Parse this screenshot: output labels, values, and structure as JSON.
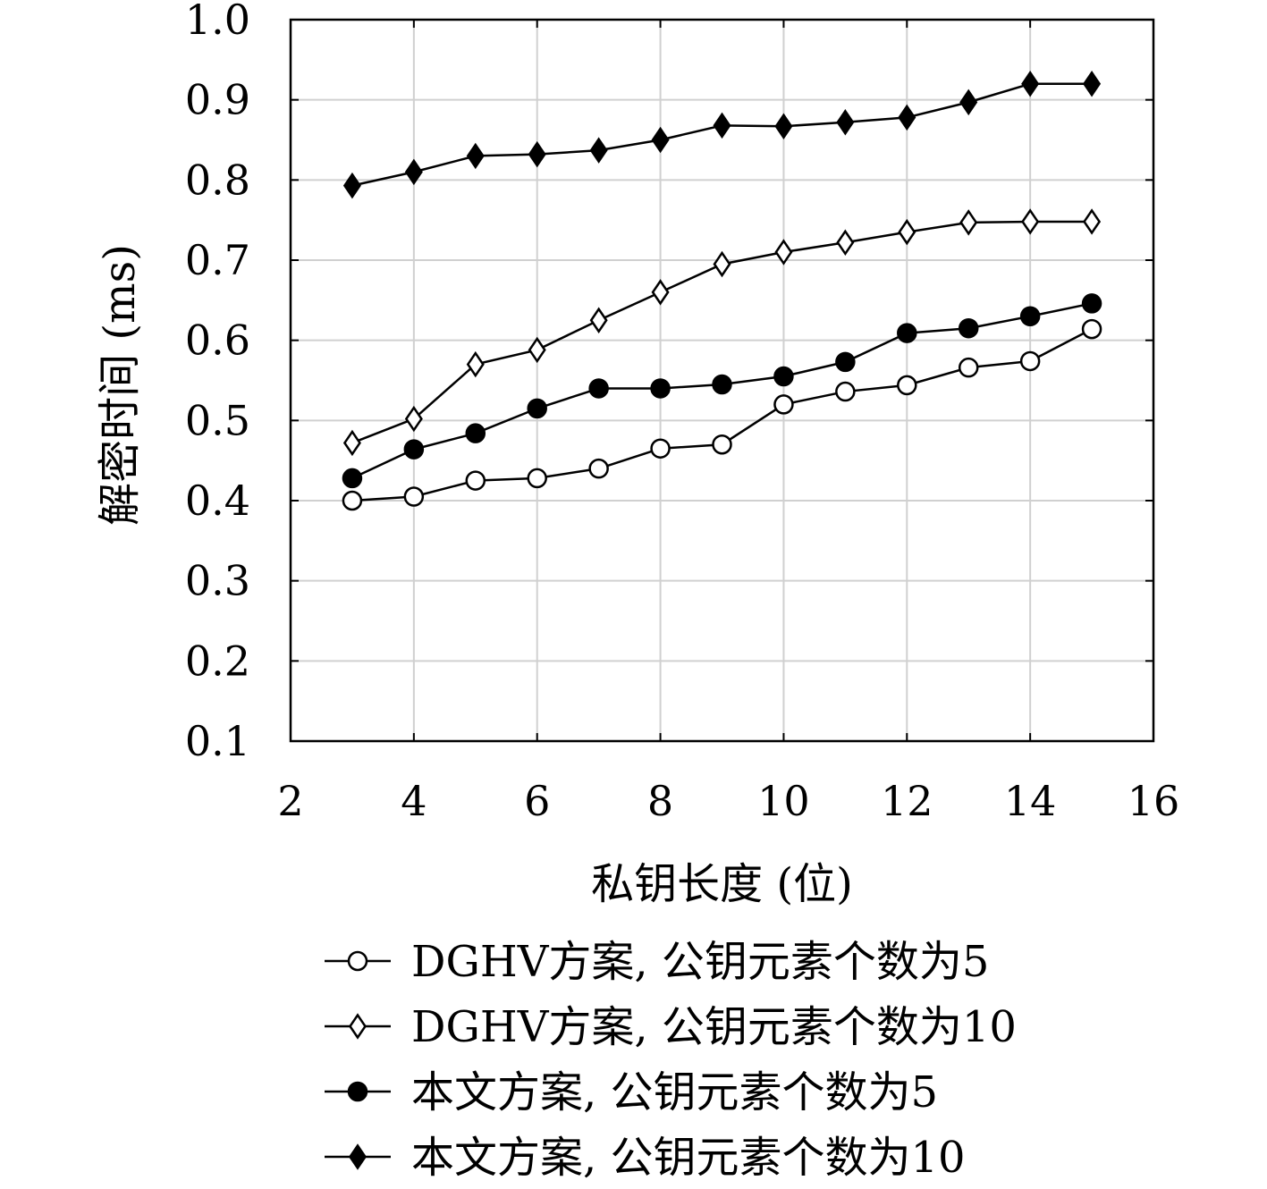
{
  "chart_data": {
    "type": "line",
    "xlabel": "私钥长度 (位)",
    "ylabel": "解密时间 (ms)",
    "xlim": [
      2,
      16
    ],
    "ylim": [
      0.1,
      1.0
    ],
    "x_ticks": [
      2,
      4,
      6,
      8,
      10,
      12,
      14,
      16
    ],
    "y_ticks": [
      0.1,
      0.2,
      0.3,
      0.4,
      0.5,
      0.6,
      0.7,
      0.8,
      0.9,
      1.0
    ],
    "x_tick_labels": [
      "2",
      "4",
      "6",
      "8",
      "10",
      "12",
      "14",
      "16"
    ],
    "y_tick_labels": [
      "0.1",
      "0.2",
      "0.3",
      "0.4",
      "0.5",
      "0.6",
      "0.7",
      "0.8",
      "0.9",
      "1.0"
    ],
    "grid": true,
    "legend_position": "bottom",
    "x": [
      3,
      4,
      5,
      6,
      7,
      8,
      9,
      10,
      11,
      12,
      13,
      14,
      15
    ],
    "series": [
      {
        "name": "DGHV方案, 公钥元素个数为5",
        "marker": "circle-open",
        "values": [
          0.4,
          0.405,
          0.425,
          0.428,
          0.44,
          0.465,
          0.47,
          0.52,
          0.536,
          0.544,
          0.566,
          0.574,
          0.614
        ]
      },
      {
        "name": "DGHV方案, 公钥元素个数为10",
        "marker": "diamond-open",
        "values": [
          0.472,
          0.502,
          0.57,
          0.588,
          0.625,
          0.66,
          0.695,
          0.71,
          0.722,
          0.735,
          0.747,
          0.748,
          0.748
        ]
      },
      {
        "name": "本文方案, 公钥元素个数为5",
        "marker": "circle-filled",
        "values": [
          0.428,
          0.464,
          0.484,
          0.515,
          0.54,
          0.54,
          0.545,
          0.555,
          0.573,
          0.609,
          0.615,
          0.63,
          0.646
        ]
      },
      {
        "name": "本文方案, 公钥元素个数为10",
        "marker": "diamond-filled",
        "values": [
          0.793,
          0.81,
          0.83,
          0.832,
          0.837,
          0.85,
          0.868,
          0.867,
          0.872,
          0.878,
          0.897,
          0.92,
          0.92
        ]
      }
    ],
    "colors": {
      "line": "#000000",
      "grid": "#d0d0d0",
      "marker_fill_open": "#ffffff",
      "marker_fill_filled": "#000000"
    }
  }
}
